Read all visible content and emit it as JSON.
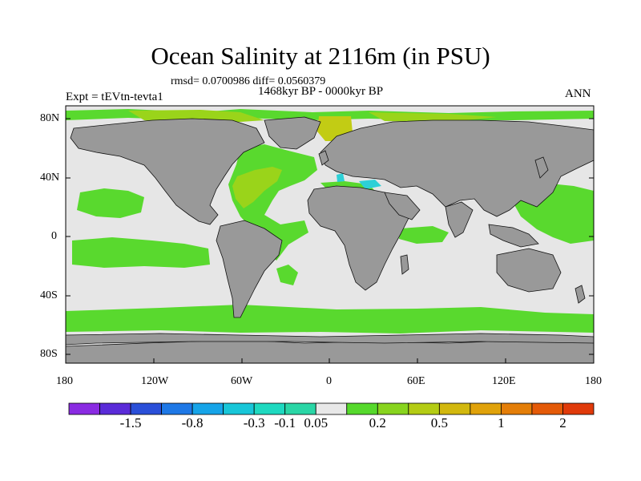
{
  "title": "Ocean Salinity at 2116m (in PSU)",
  "stats_line": "rmsd= 0.0700986 diff= 0.0560379",
  "period": "1468kyr BP - 0000kyr BP",
  "experiment": "Expt = tEVtn-tevta1",
  "season": "ANN",
  "lat_ticks": [
    "80N",
    "40N",
    "0",
    "40S",
    "80S"
  ],
  "lon_ticks": [
    "180",
    "120W",
    "60W",
    "0",
    "60E",
    "120E",
    "180"
  ],
  "colorbar": {
    "labels": [
      "-1.5",
      "-0.8",
      "-0.3",
      "-0.1",
      "0.05",
      "0.2",
      "0.5",
      "1",
      "2"
    ],
    "colors": [
      "#8a2be2",
      "#5a2bd8",
      "#2a4fd8",
      "#1e78e6",
      "#16a4e8",
      "#18c6d8",
      "#1ed9c0",
      "#2ad6a6",
      "#e8e8e8",
      "#56d92c",
      "#88d41e",
      "#b4cc14",
      "#d2b80e",
      "#e0a20a",
      "#e47e08",
      "#e45a08",
      "#e03a0a"
    ]
  },
  "colors": {
    "land": "#999999",
    "ocean_small_anomaly": "#e6e6e6",
    "ocean_positive": "#59d92e",
    "ocean_positive_high": "#8fd41a",
    "ocean_positive_higher": "#b7cc12",
    "ocean_negative": "#2dd0d6"
  }
}
